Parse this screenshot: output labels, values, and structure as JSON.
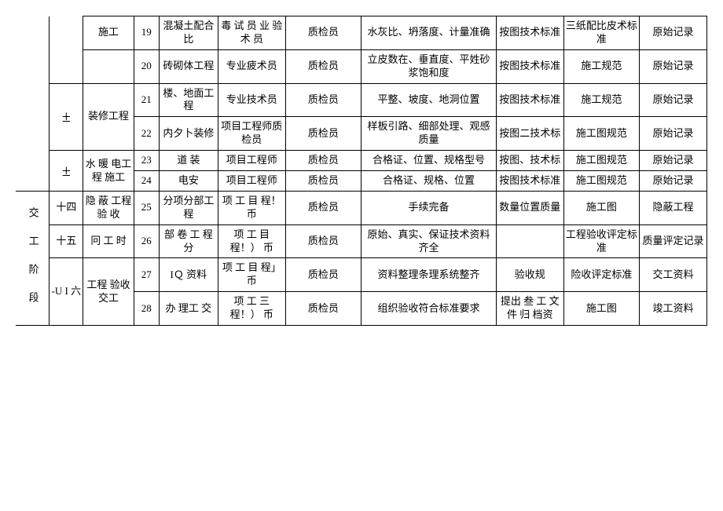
{
  "rows": {
    "r19": {
      "c2": "施工",
      "n": "19",
      "c4": "混凝土配合比",
      "c5": "毒\n试 员 业\n验 术 员",
      "c6": "质检员",
      "c7": "水灰比、坍落度、计量准确",
      "c8": "按图技术标准",
      "c9": "三纸配比皮术标准",
      "c10": "原始记录"
    },
    "r20": {
      "n": "20",
      "c4": "砖砌体工程",
      "c5": "专业疲术员",
      "c6": "质检员",
      "c7": "立皮数在、垂直度、平姓砂浆饱和度",
      "c8": "按图技术标准",
      "c9": "施工规范",
      "c10": "原始记录"
    },
    "r21": {
      "c1": "±",
      "c2": "装修工程",
      "n": "21",
      "c4": "楼、地面工程",
      "c5": "专业技术员",
      "c6": "质检员",
      "c7": "平整、坡度、地洞位置",
      "c8": "按图技术标准",
      "c9": "施工规范",
      "c10": "原始记录"
    },
    "r22": {
      "n": "22",
      "c4": "内夕卜装修",
      "c5": "项目工程师质检员",
      "c6": "质检员",
      "c7": "样板引路、细部处理、观感质量",
      "c8": "按图二技术标",
      "c9": "施工图规范",
      "c10": "原始记录"
    },
    "r23": {
      "c1": "±",
      "c2": "水 暖 电工 程 施工",
      "n": "23",
      "c4": "道\n装",
      "c5": "项目工程师",
      "c6": "质检员",
      "c7": "合格证、位置、规格型号",
      "c8": "按图、技术标",
      "c9": "施工图规范",
      "c10": "原始记录"
    },
    "r24": {
      "n": "24",
      "c4": "电安",
      "c5": "项目工程师",
      "c6": "质检员",
      "c7": "合格证、规格、位置",
      "c8": "按图技术标准",
      "c9": "施工图规范",
      "c10": "原始记录"
    },
    "r25": {
      "c0": "交 工 阶 段",
      "c1": "十四",
      "c2": "隐 蔽 工程 验 收",
      "n": "25",
      "c4": "分项分部工程",
      "c5": "项 工 目\n程！ 币",
      "c6": "质检员",
      "c7": "手续完备",
      "c8": "数量位置质量",
      "c9": "施工图",
      "c10": "隐蔽工程"
    },
    "r26": {
      "c1": "十五",
      "c2": "冋 工\n  时",
      "n": "26",
      "c4": "部  卷\n工 程 分",
      "c5": "项 工 目\n程！） 币",
      "c6": "质检员",
      "c7": "原始、真实、保证技术资料齐全",
      "c8": "",
      "c9": "工程验收评定标准",
      "c10": "质量评定记录"
    },
    "r27": {
      "c1": "-U    I 六",
      "c2": "工程\n验收交工",
      "n": "27",
      "c4": "IＱ\n资料",
      "c5": "项 工 目\n程」 币",
      "c6": "质检员",
      "c7": "资料整理条理系统整齐",
      "c8": "验收规",
      "c9": "险收评定标准",
      "c10": "交工资料"
    },
    "r28": {
      "n": "28",
      "c4": "办  理工 交",
      "c5": "项 工 三\n程！） 币",
      "c6": "质检员",
      "c7": "组织验收符合标准要求",
      "c8": "提出 叁 工\n文 件 归 档资",
      "c9": "施工图",
      "c10": "竣工资料"
    }
  }
}
